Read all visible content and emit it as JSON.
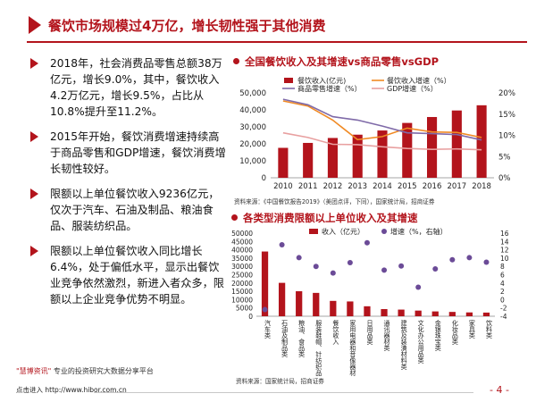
{
  "title": "餐饮市场规模过4万亿，增长韧性强于其他消费",
  "bullets": [
    "2018年，社会消费品零售总额38万亿元，增长9.0%，其中，餐饮收入4.2万亿元，增长9.5%，占比从10.8%提升至11.2%。",
    "2015年开始，餐饮消费增速持续高于商品零售和GDP增速，餐饮消费增长韧性较好。",
    "限额以上单位餐饮收入9236亿元，仅次于汽车、石油及制品、粮油食品、服装纺织品。",
    "限额以上单位餐饮收入同比增长6.4%，处于偏低水平，显示出餐饮业竞争依然激烈，新进入者众多，限额以上企业竞争优势不明显。"
  ],
  "chart1_heading": "全国餐饮收入及其增速vs商品零售vsGDP",
  "chart2_heading": "各类型消费限额以上单位收入及其增速",
  "source1": "资料来源：《中国餐饮报告2019》（美团点评，下同），国家统计局，招商证券",
  "source2": "资料来源：国家统计局，招商证券",
  "footer": {
    "brand": "\"慧博资讯\"",
    "tagline": " 专业的投资研究大数据分享平台",
    "url": "点击进入 http://www.hibor.com.cn",
    "page": "- 4 -"
  },
  "colors": {
    "accent": "#b3141c",
    "bar": "#b3141c",
    "orange": "#f08a24",
    "purple": "#7f6aa8",
    "pink": "#e8a0a0",
    "scatter": "#6b4b97"
  },
  "chart_data": [
    {
      "type": "bar",
      "categories": [
        "2010",
        "2011",
        "2012",
        "2013",
        "2014",
        "2015",
        "2016",
        "2017",
        "2018"
      ],
      "ylim": [
        0,
        50000
      ],
      "yticks": [
        "0",
        "10,000",
        "20,000",
        "30,000",
        "40,000",
        "50,000"
      ],
      "y2lim": [
        0,
        20
      ],
      "y2ticks": [
        "0%",
        "5%",
        "10%",
        "15%",
        "20%"
      ],
      "legend": [
        "餐饮收入(亿元)",
        "餐饮收入增速（%）",
        "商品零售增速（%）",
        "GDP增速（%）"
      ],
      "series": [
        {
          "name": "餐饮收入(亿元)",
          "type": "bar",
          "axis": "left",
          "values": [
            17636,
            20543,
            23448,
            25392,
            27860,
            32310,
            35799,
            39644,
            42716
          ]
        },
        {
          "name": "餐饮收入增速（%）",
          "type": "line",
          "axis": "right",
          "values": [
            18.1,
            16.9,
            13.6,
            9.0,
            9.7,
            11.7,
            10.8,
            10.7,
            9.5
          ]
        },
        {
          "name": "商品零售增速（%）",
          "type": "line",
          "axis": "right",
          "values": [
            18.5,
            17.2,
            14.4,
            13.6,
            12.2,
            10.6,
            10.4,
            10.2,
            8.9
          ]
        },
        {
          "name": "GDP增速（%）",
          "type": "line",
          "axis": "right",
          "values": [
            10.6,
            9.5,
            7.9,
            7.8,
            7.3,
            6.9,
            6.7,
            6.8,
            6.6
          ]
        }
      ]
    },
    {
      "type": "bar",
      "categories": [
        "汽车类",
        "石油及制品类",
        "粮油、食品类",
        "服装鞋帽、针纺织品",
        "餐饮收入",
        "家用电器和音像器材",
        "日用品类",
        "通讯器材类",
        "建筑及装潢材料类",
        "文化办公用品类",
        "金银珠宝类",
        "化妆品类",
        "家具类",
        "饮料类"
      ],
      "ylim": [
        0,
        50000
      ],
      "yticks": [
        "0",
        "5000",
        "10000",
        "15000",
        "20000",
        "25000",
        "30000",
        "35000",
        "40000",
        "45000",
        "50000"
      ],
      "y2lim": [
        -4,
        16
      ],
      "y2ticks": [
        "-4",
        "-2",
        "0",
        "2",
        "4",
        "6",
        "8",
        "10",
        "12",
        "14",
        "16"
      ],
      "legend": [
        "收入（亿元）",
        "增速（%，右轴）"
      ],
      "series": [
        {
          "name": "收入（亿元）",
          "type": "bar",
          "axis": "left",
          "values": [
            38950,
            20100,
            15050,
            14050,
            9236,
            8900,
            6000,
            4300,
            4000,
            3400,
            2900,
            2600,
            2300,
            2200
          ]
        },
        {
          "name": "增速（%，右轴）",
          "type": "scatter",
          "axis": "right",
          "values": [
            -2.4,
            13.2,
            10.1,
            8.0,
            6.4,
            8.9,
            13.7,
            7.1,
            8.1,
            3.0,
            7.4,
            9.6,
            10.1,
            9.0
          ]
        }
      ]
    }
  ]
}
